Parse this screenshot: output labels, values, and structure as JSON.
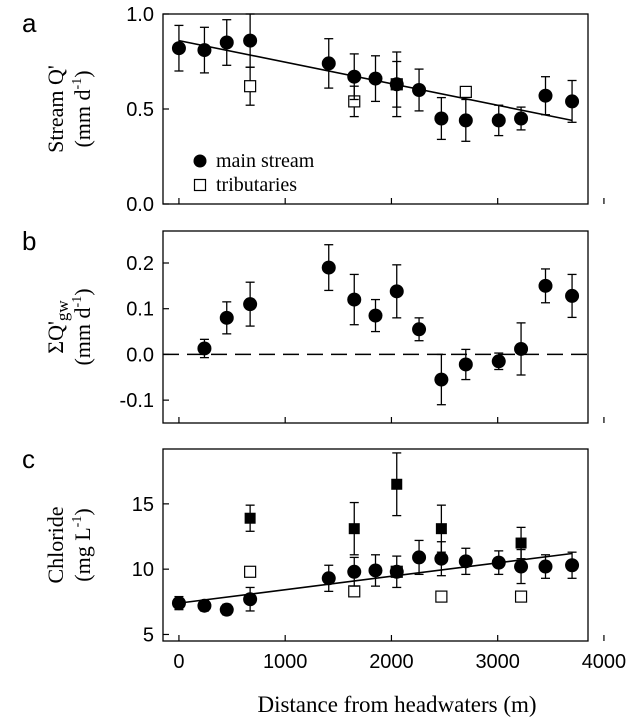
{
  "figure": {
    "xlabel": "Distance from headwaters (m)",
    "x_ticks": [
      0,
      1000,
      2000,
      3000,
      4000
    ]
  },
  "chart_data": [
    {
      "panel": "a",
      "type": "scatter",
      "ylabel": "Stream Q' (mm d-1)",
      "ylabel_main": "Stream Q'",
      "ylabel_unit_prefix": "(mm d",
      "ylabel_unit_sup": "-1",
      "ylabel_unit_suffix": ")",
      "xlim": [
        -150,
        3850
      ],
      "ylim": [
        0.0,
        1.0
      ],
      "y_ticks": [
        "0.0",
        "0.5",
        "1.0"
      ],
      "legend": {
        "placement": "bottom-left",
        "entries": [
          {
            "label": "main stream",
            "marker": "filled-circle"
          },
          {
            "label": "tributaries",
            "marker": "open-square"
          }
        ]
      },
      "series": [
        {
          "name": "main stream",
          "marker": "filled-circle",
          "points": [
            {
              "x": 0,
              "y": 0.82,
              "err": 0.12
            },
            {
              "x": 240,
              "y": 0.81,
              "err": 0.12
            },
            {
              "x": 450,
              "y": 0.85,
              "err": 0.12
            },
            {
              "x": 670,
              "y": 0.86,
              "err": 0.14
            },
            {
              "x": 1410,
              "y": 0.74,
              "err": 0.13
            },
            {
              "x": 1650,
              "y": 0.67,
              "err": 0.12
            },
            {
              "x": 1850,
              "y": 0.66,
              "err": 0.12
            },
            {
              "x": 2050,
              "y": 0.63,
              "err": 0.12
            },
            {
              "x": 2260,
              "y": 0.6,
              "err": 0.11
            },
            {
              "x": 2470,
              "y": 0.45,
              "err": 0.11
            },
            {
              "x": 2700,
              "y": 0.44,
              "err": 0.11
            },
            {
              "x": 3010,
              "y": 0.44,
              "err": 0.08
            },
            {
              "x": 3220,
              "y": 0.45,
              "err": 0.06
            },
            {
              "x": 3450,
              "y": 0.57,
              "err": 0.1
            },
            {
              "x": 3700,
              "y": 0.54,
              "err": 0.11
            }
          ]
        },
        {
          "name": "tributaries",
          "marker": "open-square",
          "points": [
            {
              "x": 670,
              "y": 0.62,
              "err": 0.1
            },
            {
              "x": 1650,
              "y": 0.54,
              "err": 0.08
            },
            {
              "x": 2050,
              "y": 0.63,
              "err": 0.17
            },
            {
              "x": 2700,
              "y": 0.59,
              "err": 0
            }
          ]
        }
      ],
      "trendline": {
        "x": [
          0,
          3700
        ],
        "y": [
          0.86,
          0.44
        ],
        "style": "solid"
      }
    },
    {
      "panel": "b",
      "type": "scatter",
      "ylabel": "ΣQ'gw (mm d-1)",
      "ylabel_main": "ΣQ'gw",
      "ylabel_unit_prefix": "(mm d",
      "ylabel_unit_sup": "-1",
      "ylabel_unit_suffix": ")",
      "xlim": [
        -150,
        3850
      ],
      "ylim": [
        -0.15,
        0.27
      ],
      "y_ticks": [
        "-0.1",
        "0.0",
        "0.1",
        "0.2"
      ],
      "reference_line": {
        "y": 0.0,
        "style": "dashed"
      },
      "series": [
        {
          "name": "",
          "marker": "filled-circle",
          "points": [
            {
              "x": 240,
              "y": 0.013,
              "err": 0.02
            },
            {
              "x": 450,
              "y": 0.08,
              "err": 0.035
            },
            {
              "x": 670,
              "y": 0.11,
              "err": 0.048
            },
            {
              "x": 1410,
              "y": 0.19,
              "err": 0.05
            },
            {
              "x": 1650,
              "y": 0.12,
              "err": 0.055
            },
            {
              "x": 1850,
              "y": 0.085,
              "err": 0.035
            },
            {
              "x": 2050,
              "y": 0.138,
              "err": 0.058
            },
            {
              "x": 2260,
              "y": 0.055,
              "err": 0.025
            },
            {
              "x": 2470,
              "y": -0.055,
              "err": 0.055
            },
            {
              "x": 2700,
              "y": -0.022,
              "err": 0.033
            },
            {
              "x": 3010,
              "y": -0.015,
              "err": 0.018
            },
            {
              "x": 3220,
              "y": 0.012,
              "err": 0.057
            },
            {
              "x": 3450,
              "y": 0.15,
              "err": 0.037
            },
            {
              "x": 3700,
              "y": 0.128,
              "err": 0.047
            }
          ]
        }
      ]
    },
    {
      "panel": "c",
      "type": "scatter",
      "ylabel": "Chloride (mg L-1)",
      "ylabel_main": "Chloride",
      "ylabel_unit_prefix": "(mg L",
      "ylabel_unit_sup": "-1",
      "ylabel_unit_suffix": ")",
      "xlim": [
        -150,
        3850
      ],
      "ylim": [
        4.5,
        19.2
      ],
      "y_ticks": [
        "5",
        "10",
        "15"
      ],
      "series": [
        {
          "name": "main stream",
          "marker": "filled-circle",
          "points": [
            {
              "x": 0,
              "y": 7.4,
              "err": 0.5
            },
            {
              "x": 240,
              "y": 7.2,
              "err": 0.4
            },
            {
              "x": 450,
              "y": 6.9,
              "err": 0.4
            },
            {
              "x": 670,
              "y": 7.7,
              "err": 0.9
            },
            {
              "x": 1410,
              "y": 9.3,
              "err": 1.0
            },
            {
              "x": 1650,
              "y": 9.8,
              "err": 1.1
            },
            {
              "x": 1850,
              "y": 9.9,
              "err": 1.2
            },
            {
              "x": 2050,
              "y": 9.8,
              "err": 1.2
            },
            {
              "x": 2260,
              "y": 10.9,
              "err": 1.3
            },
            {
              "x": 2470,
              "y": 10.8,
              "err": 1.3
            },
            {
              "x": 2700,
              "y": 10.6,
              "err": 1.0
            },
            {
              "x": 3010,
              "y": 10.5,
              "err": 0.9
            },
            {
              "x": 3220,
              "y": 10.2,
              "err": 1.3
            },
            {
              "x": 3450,
              "y": 10.2,
              "err": 0.9
            },
            {
              "x": 3700,
              "y": 10.3,
              "err": 1.0
            }
          ]
        },
        {
          "name": "",
          "marker": "filled-square",
          "points": [
            {
              "x": 670,
              "y": 13.9,
              "err": 1.0
            },
            {
              "x": 1650,
              "y": 13.1,
              "err": 2.0
            },
            {
              "x": 2050,
              "y": 16.5,
              "err": 2.4
            },
            {
              "x": 2470,
              "y": 13.1,
              "err": 1.8
            },
            {
              "x": 3220,
              "y": 12.0,
              "err": 1.2
            }
          ]
        },
        {
          "name": "tributaries",
          "marker": "open-square",
          "points": [
            {
              "x": 670,
              "y": 9.8
            },
            {
              "x": 1650,
              "y": 8.3
            },
            {
              "x": 2050,
              "y": 9.8
            },
            {
              "x": 2470,
              "y": 7.9
            },
            {
              "x": 3220,
              "y": 7.9
            }
          ]
        }
      ],
      "trendline": {
        "x": [
          0,
          3700
        ],
        "y": [
          7.4,
          11.2
        ],
        "style": "solid"
      }
    }
  ]
}
